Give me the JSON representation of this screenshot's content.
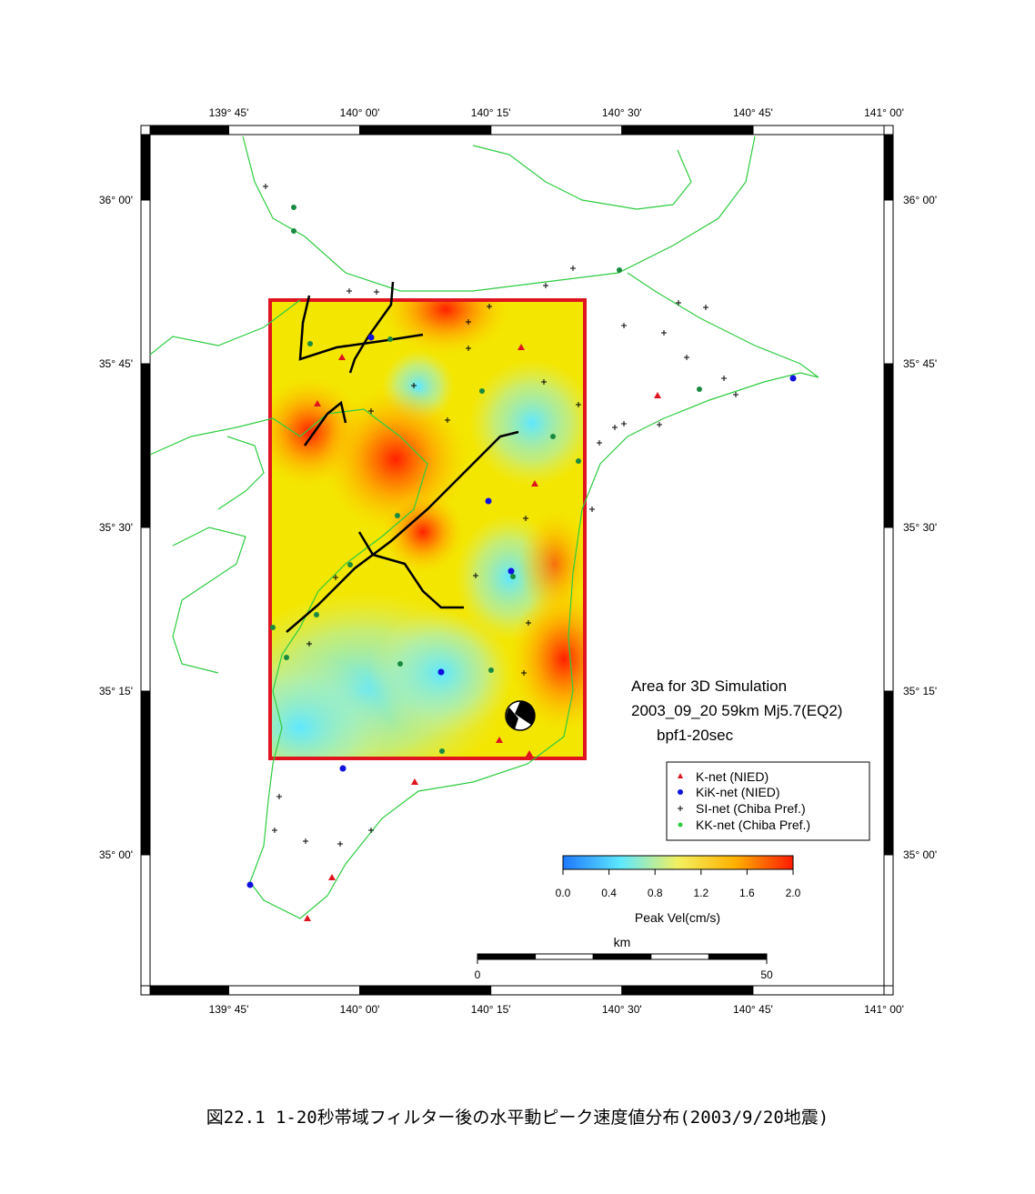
{
  "chart_data": {
    "type": "map",
    "xlim": [
      139.6,
      141.0
    ],
    "ylim": [
      34.8,
      36.1
    ],
    "xticks": [
      {
        "value": 139.75,
        "label": "139° 45'"
      },
      {
        "value": 140.0,
        "label": "140° 00'"
      },
      {
        "value": 140.25,
        "label": "140° 15'"
      },
      {
        "value": 140.5,
        "label": "140° 30'"
      },
      {
        "value": 140.75,
        "label": "140° 45'"
      },
      {
        "value": 141.0,
        "label": "141° 00'"
      }
    ],
    "yticks": [
      {
        "value": 36.0,
        "label": "36° 00'"
      },
      {
        "value": 35.75,
        "label": "35° 45'"
      },
      {
        "value": 35.5,
        "label": "35° 30'"
      },
      {
        "value": 35.25,
        "label": "35° 15'"
      },
      {
        "value": 35.0,
        "label": "35° 00'"
      }
    ],
    "annotations": [
      "Area for 3D Simulation",
      "2003_09_20 59km Mj5.7(EQ2)",
      "bpf1-20sec"
    ],
    "legend": [
      "K-net (NIED)",
      "KiK-net (NIED)",
      "SI-net (Chiba Pref.)",
      "KK-net (Chiba Pref.)"
    ],
    "colorbar": {
      "label": "Peak Vel(cm/s)",
      "lim": [
        0,
        2
      ],
      "ticks": [
        {
          "value": 0,
          "label": "0.0"
        },
        {
          "value": 0.4,
          "label": "0.4"
        },
        {
          "value": 0.8,
          "label": "0.8"
        },
        {
          "value": 1.2,
          "label": "1.2"
        },
        {
          "value": 1.6,
          "label": "1.6"
        },
        {
          "value": 2,
          "label": "2.0"
        }
      ],
      "colors": [
        "#1e78ff",
        "#5de8ff",
        "#f2f060",
        "#ffb000",
        "#ff1a00"
      ]
    },
    "scale_bar": {
      "label": "km",
      "ticks": [
        0,
        50
      ]
    },
    "caption": "図22.1 1-20秒帯域フィルター後の水平動ピーク速度値分布(2003/9/20地震)"
  }
}
